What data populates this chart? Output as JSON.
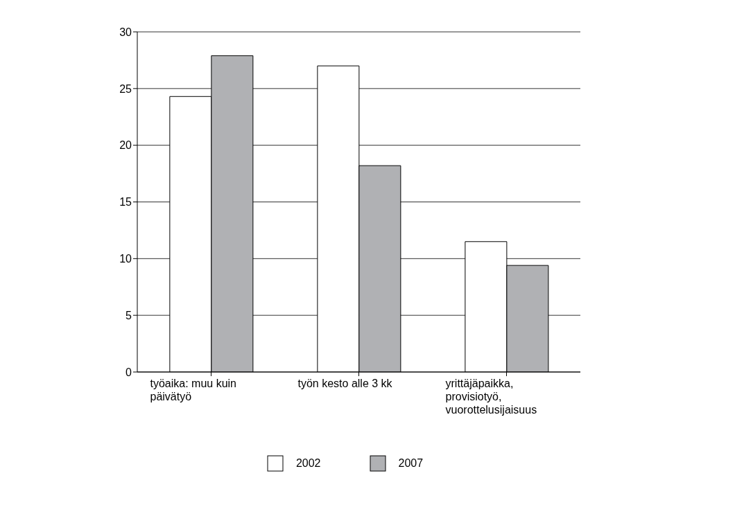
{
  "chart_data": {
    "type": "bar",
    "categories": [
      "työaika: muu kuin päivätyö",
      "työn kesto alle 3 kk",
      "yrittäjäpaikka, provisiotyö, vuorottelusijaisuus"
    ],
    "series": [
      {
        "name": "2002",
        "color": "#ffffff",
        "values": [
          24.3,
          27.0,
          11.5
        ]
      },
      {
        "name": "2007",
        "color": "#b0b1b4",
        "values": [
          27.9,
          18.2,
          9.4
        ]
      }
    ],
    "ylim": [
      0,
      30
    ],
    "yticks": [
      0,
      5,
      10,
      15,
      20,
      25,
      30
    ],
    "grid": "y",
    "legend": "bottom"
  }
}
